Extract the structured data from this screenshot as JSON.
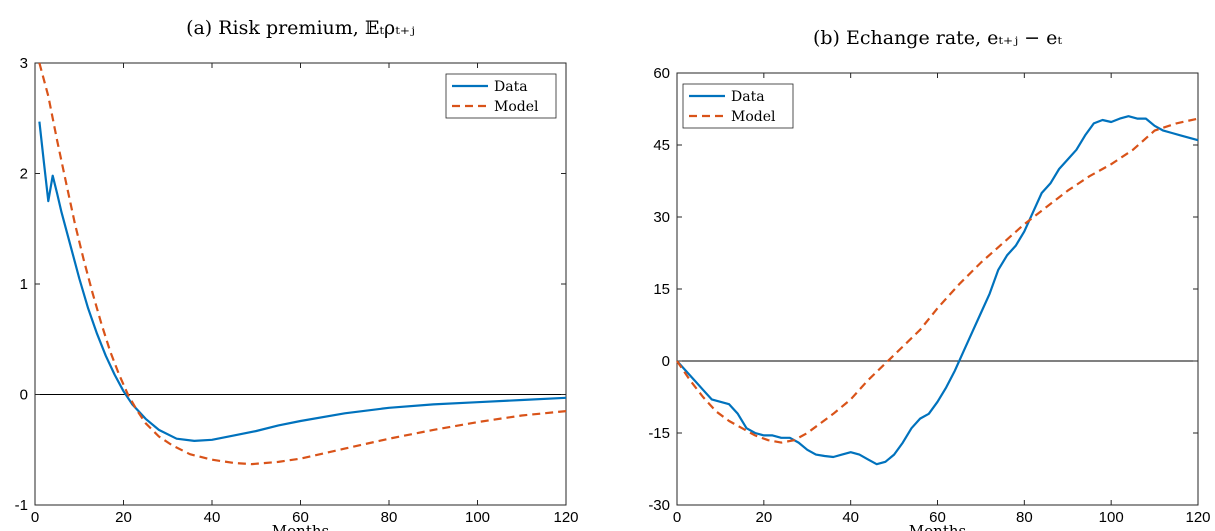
{
  "chart_data": [
    {
      "type": "line",
      "title": "(a) Risk premium, 𝔼ₜρₜ₊ⱼ",
      "xlabel": "Months",
      "ylabel": "",
      "xlim": [
        0,
        120
      ],
      "ylim": [
        -1,
        3
      ],
      "xticks": [
        "0",
        "20",
        "40",
        "60",
        "80",
        "100",
        "120"
      ],
      "yticks": [
        "-1",
        "0",
        "1",
        "2",
        "3"
      ],
      "reference_line_y": 0,
      "legend": {
        "position": "top-right",
        "entries": [
          "Data",
          "Model"
        ]
      },
      "series": [
        {
          "name": "Data",
          "style": "solid",
          "color": "#0072BD",
          "points": [
            [
              1,
              2.47
            ],
            [
              2,
              2.1
            ],
            [
              3,
              1.75
            ],
            [
              4,
              1.98
            ],
            [
              5,
              1.82
            ],
            [
              6,
              1.65
            ],
            [
              8,
              1.35
            ],
            [
              10,
              1.05
            ],
            [
              12,
              0.78
            ],
            [
              14,
              0.55
            ],
            [
              16,
              0.35
            ],
            [
              18,
              0.18
            ],
            [
              20,
              0.03
            ],
            [
              22,
              -0.09
            ],
            [
              25,
              -0.22
            ],
            [
              28,
              -0.32
            ],
            [
              32,
              -0.4
            ],
            [
              36,
              -0.42
            ],
            [
              40,
              -0.41
            ],
            [
              45,
              -0.37
            ],
            [
              50,
              -0.33
            ],
            [
              55,
              -0.28
            ],
            [
              60,
              -0.24
            ],
            [
              70,
              -0.17
            ],
            [
              80,
              -0.12
            ],
            [
              90,
              -0.09
            ],
            [
              100,
              -0.07
            ],
            [
              110,
              -0.05
            ],
            [
              120,
              -0.03
            ]
          ]
        },
        {
          "name": "Model",
          "style": "dashed",
          "color": "#D95319",
          "points": [
            [
              1,
              3.0
            ],
            [
              3,
              2.7
            ],
            [
              5,
              2.3
            ],
            [
              7,
              1.92
            ],
            [
              9,
              1.55
            ],
            [
              11,
              1.22
            ],
            [
              13,
              0.92
            ],
            [
              15,
              0.64
            ],
            [
              17,
              0.39
            ],
            [
              19,
              0.18
            ],
            [
              21,
              0.0
            ],
            [
              23,
              -0.14
            ],
            [
              25,
              -0.26
            ],
            [
              28,
              -0.38
            ],
            [
              31,
              -0.46
            ],
            [
              35,
              -0.54
            ],
            [
              40,
              -0.59
            ],
            [
              45,
              -0.62
            ],
            [
              49,
              -0.63
            ],
            [
              55,
              -0.61
            ],
            [
              60,
              -0.58
            ],
            [
              70,
              -0.49
            ],
            [
              80,
              -0.4
            ],
            [
              90,
              -0.32
            ],
            [
              100,
              -0.25
            ],
            [
              110,
              -0.19
            ],
            [
              120,
              -0.15
            ]
          ]
        }
      ]
    },
    {
      "type": "line",
      "title": "(b) Echange rate, eₜ₊ⱼ − eₜ",
      "xlabel": "Months",
      "ylabel": "",
      "xlim": [
        0,
        120
      ],
      "ylim": [
        -30,
        60
      ],
      "xticks": [
        "0",
        "20",
        "40",
        "60",
        "80",
        "100",
        "120"
      ],
      "yticks": [
        "-30",
        "-15",
        "0",
        "15",
        "30",
        "45",
        "60"
      ],
      "reference_line_y": 0,
      "legend": {
        "position": "top-left",
        "entries": [
          "Data",
          "Model"
        ]
      },
      "series": [
        {
          "name": "Data",
          "style": "solid",
          "color": "#0072BD",
          "points": [
            [
              0,
              0
            ],
            [
              2,
              -2
            ],
            [
              4,
              -4
            ],
            [
              6,
              -6
            ],
            [
              8,
              -8
            ],
            [
              10,
              -8.5
            ],
            [
              12,
              -9
            ],
            [
              14,
              -11
            ],
            [
              16,
              -14
            ],
            [
              18,
              -15
            ],
            [
              20,
              -15.5
            ],
            [
              22,
              -15.5
            ],
            [
              24,
              -16
            ],
            [
              26,
              -16
            ],
            [
              28,
              -17
            ],
            [
              30,
              -18.5
            ],
            [
              32,
              -19.5
            ],
            [
              34,
              -19.8
            ],
            [
              36,
              -20
            ],
            [
              38,
              -19.5
            ],
            [
              40,
              -19
            ],
            [
              42,
              -19.5
            ],
            [
              44,
              -20.5
            ],
            [
              46,
              -21.5
            ],
            [
              48,
              -21
            ],
            [
              50,
              -19.5
            ],
            [
              52,
              -17
            ],
            [
              54,
              -14
            ],
            [
              56,
              -12
            ],
            [
              58,
              -11
            ],
            [
              60,
              -8.5
            ],
            [
              62,
              -5.5
            ],
            [
              64,
              -2
            ],
            [
              66,
              2
            ],
            [
              68,
              6
            ],
            [
              70,
              10
            ],
            [
              72,
              14
            ],
            [
              74,
              19
            ],
            [
              76,
              22
            ],
            [
              78,
              24
            ],
            [
              80,
              27
            ],
            [
              82,
              31
            ],
            [
              84,
              35
            ],
            [
              86,
              37
            ],
            [
              88,
              40
            ],
            [
              90,
              42
            ],
            [
              92,
              44
            ],
            [
              94,
              47
            ],
            [
              96,
              49.5
            ],
            [
              98,
              50.2
            ],
            [
              100,
              49.8
            ],
            [
              102,
              50.5
            ],
            [
              104,
              51
            ],
            [
              106,
              50.5
            ],
            [
              108,
              50.5
            ],
            [
              110,
              49
            ],
            [
              112,
              48
            ],
            [
              114,
              47.5
            ],
            [
              116,
              47
            ],
            [
              118,
              46.5
            ],
            [
              120,
              46
            ]
          ]
        },
        {
          "name": "Model",
          "style": "dashed",
          "color": "#D95319",
          "points": [
            [
              0,
              0
            ],
            [
              3,
              -4
            ],
            [
              6,
              -7.5
            ],
            [
              9,
              -10.5
            ],
            [
              12,
              -12.5
            ],
            [
              15,
              -14
            ],
            [
              18,
              -15.5
            ],
            [
              21,
              -16.5
            ],
            [
              24,
              -17
            ],
            [
              27,
              -16.5
            ],
            [
              30,
              -15
            ],
            [
              33,
              -13
            ],
            [
              36,
              -11
            ],
            [
              40,
              -8
            ],
            [
              44,
              -4
            ],
            [
              48,
              -0.5
            ],
            [
              52,
              3
            ],
            [
              56,
              6.5
            ],
            [
              60,
              11
            ],
            [
              65,
              16
            ],
            [
              70,
              20.5
            ],
            [
              75,
              24.5
            ],
            [
              80,
              28.5
            ],
            [
              85,
              32
            ],
            [
              90,
              35.5
            ],
            [
              95,
              38.5
            ],
            [
              100,
              41
            ],
            [
              105,
              44
            ],
            [
              110,
              48
            ],
            [
              115,
              49.5
            ],
            [
              120,
              50.5
            ]
          ]
        }
      ]
    }
  ]
}
